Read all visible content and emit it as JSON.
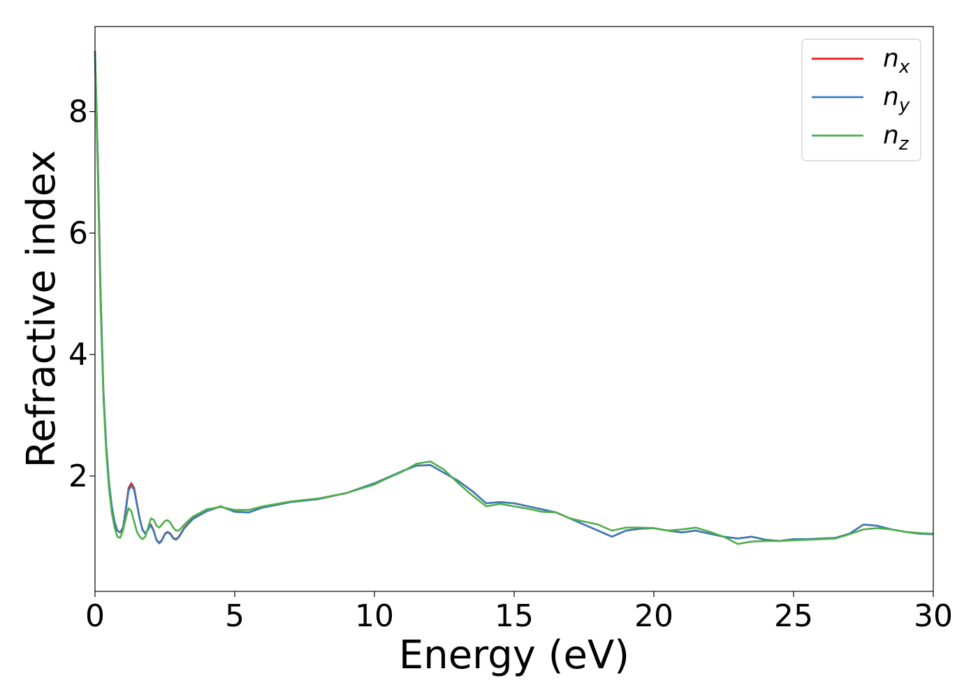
{
  "chart_data": {
    "type": "line",
    "title": "",
    "xlabel": "Energy (eV)",
    "ylabel": "Refractive index",
    "xlim": [
      0,
      30
    ],
    "ylim": [
      0.1,
      9.4
    ],
    "xticks": [
      "0",
      "5",
      "10",
      "15",
      "20",
      "25",
      "30"
    ],
    "yticks": [
      "2",
      "4",
      "6",
      "8"
    ],
    "grid": false,
    "legend_position": "top-right",
    "series": [
      {
        "name": "n_x",
        "legend_base": "n",
        "legend_sub": "x",
        "color": "#e41a1c",
        "x": [
          0,
          0.1,
          0.2,
          0.3,
          0.4,
          0.5,
          0.6,
          0.7,
          0.8,
          0.9,
          1.0,
          1.1,
          1.2,
          1.3,
          1.4,
          1.5,
          1.6,
          1.7,
          1.8,
          1.9,
          2.0,
          2.1,
          2.2,
          2.3,
          2.4,
          2.5,
          2.6,
          2.7,
          2.8,
          2.9,
          3.0,
          3.2,
          3.5,
          4.0,
          4.5,
          5.0,
          5.5,
          6.0,
          7.0,
          8.0,
          9.0,
          10.0,
          10.5,
          11.0,
          11.5,
          12.0,
          12.5,
          13.0,
          13.5,
          14.0,
          14.5,
          15.0,
          15.5,
          16.0,
          16.5,
          17.0,
          17.5,
          18.0,
          18.5,
          19.0,
          19.5,
          20.0,
          20.5,
          21.0,
          21.5,
          22.0,
          22.5,
          23.0,
          23.5,
          24.0,
          24.5,
          25.0,
          25.5,
          26.0,
          26.5,
          27.0,
          27.5,
          28.0,
          28.5,
          29.0,
          29.5,
          30.0
        ],
        "y": [
          9.0,
          7.2,
          5.0,
          3.4,
          2.5,
          1.9,
          1.5,
          1.25,
          1.1,
          1.07,
          1.15,
          1.45,
          1.8,
          1.88,
          1.8,
          1.55,
          1.3,
          1.12,
          1.05,
          1.12,
          1.2,
          1.1,
          0.95,
          0.9,
          0.95,
          1.05,
          1.08,
          1.05,
          0.98,
          0.96,
          1.0,
          1.15,
          1.3,
          1.42,
          1.5,
          1.41,
          1.4,
          1.48,
          1.57,
          1.62,
          1.72,
          1.88,
          1.98,
          2.08,
          2.17,
          2.18,
          2.05,
          1.92,
          1.75,
          1.55,
          1.57,
          1.55,
          1.5,
          1.45,
          1.4,
          1.3,
          1.2,
          1.1,
          1.0,
          1.1,
          1.13,
          1.14,
          1.1,
          1.07,
          1.1,
          1.05,
          1.0,
          0.97,
          1.0,
          0.95,
          0.93,
          0.96,
          0.96,
          0.97,
          0.98,
          1.05,
          1.2,
          1.18,
          1.12,
          1.08,
          1.05,
          1.04
        ]
      },
      {
        "name": "n_y",
        "legend_base": "n",
        "legend_sub": "y",
        "color": "#377eb8",
        "x": [
          0,
          0.1,
          0.2,
          0.3,
          0.4,
          0.5,
          0.6,
          0.7,
          0.8,
          0.9,
          1.0,
          1.1,
          1.2,
          1.3,
          1.4,
          1.5,
          1.6,
          1.7,
          1.8,
          1.9,
          2.0,
          2.1,
          2.2,
          2.3,
          2.4,
          2.5,
          2.6,
          2.7,
          2.8,
          2.9,
          3.0,
          3.2,
          3.5,
          4.0,
          4.5,
          5.0,
          5.5,
          6.0,
          7.0,
          8.0,
          9.0,
          10.0,
          10.5,
          11.0,
          11.5,
          12.0,
          12.5,
          13.0,
          13.5,
          14.0,
          14.5,
          15.0,
          15.5,
          16.0,
          16.5,
          17.0,
          17.5,
          18.0,
          18.5,
          19.0,
          19.5,
          20.0,
          20.5,
          21.0,
          21.5,
          22.0,
          22.5,
          23.0,
          23.5,
          24.0,
          24.5,
          25.0,
          25.5,
          26.0,
          26.5,
          27.0,
          27.5,
          28.0,
          28.5,
          29.0,
          29.5,
          30.0
        ],
        "y": [
          9.0,
          7.2,
          5.0,
          3.4,
          2.5,
          1.9,
          1.5,
          1.25,
          1.1,
          1.07,
          1.13,
          1.42,
          1.76,
          1.84,
          1.77,
          1.53,
          1.29,
          1.11,
          1.05,
          1.12,
          1.19,
          1.09,
          0.94,
          0.89,
          0.94,
          1.04,
          1.07,
          1.04,
          0.97,
          0.95,
          0.99,
          1.14,
          1.29,
          1.42,
          1.5,
          1.41,
          1.4,
          1.48,
          1.57,
          1.62,
          1.72,
          1.88,
          1.98,
          2.08,
          2.17,
          2.18,
          2.05,
          1.92,
          1.75,
          1.55,
          1.57,
          1.55,
          1.5,
          1.45,
          1.4,
          1.3,
          1.2,
          1.1,
          1.0,
          1.1,
          1.13,
          1.14,
          1.1,
          1.07,
          1.1,
          1.05,
          1.0,
          0.97,
          1.0,
          0.95,
          0.93,
          0.96,
          0.96,
          0.97,
          0.98,
          1.05,
          1.2,
          1.18,
          1.12,
          1.08,
          1.05,
          1.04
        ]
      },
      {
        "name": "n_z",
        "legend_base": "n",
        "legend_sub": "z",
        "color": "#4daf4a",
        "x": [
          0,
          0.1,
          0.2,
          0.3,
          0.4,
          0.5,
          0.6,
          0.7,
          0.8,
          0.9,
          1.0,
          1.1,
          1.2,
          1.3,
          1.4,
          1.5,
          1.6,
          1.7,
          1.8,
          1.9,
          2.0,
          2.1,
          2.2,
          2.3,
          2.4,
          2.5,
          2.6,
          2.7,
          2.8,
          2.9,
          3.0,
          3.2,
          3.5,
          4.0,
          4.5,
          5.0,
          5.5,
          6.0,
          7.0,
          8.0,
          9.0,
          10.0,
          10.5,
          11.0,
          11.5,
          12.0,
          12.5,
          13.0,
          13.5,
          14.0,
          14.5,
          15.0,
          15.5,
          16.0,
          16.5,
          17.0,
          17.5,
          18.0,
          18.5,
          19.0,
          19.5,
          20.0,
          20.5,
          21.0,
          21.5,
          22.0,
          22.5,
          23.0,
          23.5,
          24.0,
          24.5,
          25.0,
          25.5,
          26.0,
          26.5,
          27.0,
          27.5,
          28.0,
          28.5,
          29.0,
          29.5,
          30.0
        ],
        "y": [
          8.9,
          7.0,
          4.8,
          3.3,
          2.4,
          1.8,
          1.4,
          1.15,
          1.0,
          0.98,
          1.1,
          1.3,
          1.47,
          1.42,
          1.25,
          1.08,
          1.0,
          0.96,
          1.0,
          1.15,
          1.3,
          1.28,
          1.18,
          1.15,
          1.2,
          1.26,
          1.27,
          1.23,
          1.15,
          1.1,
          1.1,
          1.2,
          1.33,
          1.45,
          1.49,
          1.44,
          1.44,
          1.5,
          1.58,
          1.63,
          1.72,
          1.86,
          1.97,
          2.07,
          2.2,
          2.24,
          2.1,
          1.88,
          1.68,
          1.5,
          1.54,
          1.5,
          1.46,
          1.41,
          1.4,
          1.3,
          1.25,
          1.2,
          1.1,
          1.15,
          1.15,
          1.14,
          1.1,
          1.12,
          1.15,
          1.08,
          1.0,
          0.88,
          0.92,
          0.93,
          0.93,
          0.94,
          0.95,
          0.96,
          0.97,
          1.04,
          1.12,
          1.14,
          1.12,
          1.08,
          1.06,
          1.05
        ]
      }
    ]
  }
}
